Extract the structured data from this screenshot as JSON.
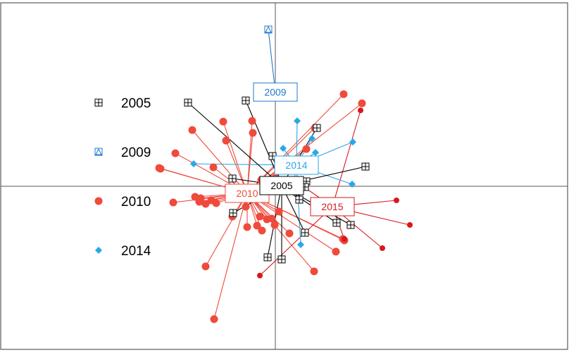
{
  "chart_data": {
    "type": "scatter",
    "title": "",
    "xlabel": "",
    "ylabel": "",
    "xlim": [
      -390,
      416
    ],
    "ylim": [
      -232,
      262
    ],
    "grid": false,
    "axes_through_origin": true,
    "legend_position": "left",
    "legend": [
      {
        "label": "2005",
        "marker": "square-plus",
        "color": "#000000"
      },
      {
        "label": "2009",
        "marker": "square-triangle",
        "color": "#1f78d0"
      },
      {
        "label": "2010",
        "marker": "circle",
        "color": "#ef4a3c"
      },
      {
        "label": "2014",
        "marker": "diamond",
        "color": "#29a8e8"
      }
    ],
    "series": [
      {
        "name": "2005",
        "color": "#000000",
        "marker": "square-plus",
        "centroid": {
          "label": "2005",
          "x": 9,
          "y": 1
        },
        "x": [
          -124,
          -42,
          59,
          -4,
          128,
          -61,
          -60,
          42,
          87,
          107,
          -11,
          9,
          34,
          29,
          44,
          42
        ],
        "y": [
          119,
          122,
          83,
          43,
          28,
          11,
          -38,
          -66,
          -52,
          -55,
          -101,
          -104,
          -19,
          3,
          7,
          -1
        ]
      },
      {
        "name": "2009",
        "color": "#1f78d0",
        "marker": "square-triangle",
        "centroid": {
          "label": "2009",
          "x": 0,
          "y": 134
        },
        "x": [
          -10
        ],
        "y": [
          223
        ]
      },
      {
        "name": "2010",
        "color": "#ef4a3c",
        "marker": "circle",
        "centroid": {
          "label": "2010",
          "x": -40,
          "y": -10
        },
        "x": [
          -163,
          -142,
          -88,
          -118,
          -70,
          -74,
          -32,
          -33,
          -165,
          -99,
          -106,
          -91,
          -108,
          -84,
          -61,
          -42,
          -40,
          -26,
          -12,
          -5,
          -22,
          -19,
          -99,
          -87,
          -145,
          -114,
          5,
          20,
          55,
          86,
          96,
          123,
          97,
          56,
          44,
          14,
          -20,
          -1,
          98,
          25,
          0
        ],
        "y": [
          25,
          47,
          27,
          80,
          65,
          92,
          76,
          93,
          26,
          -25,
          -17,
          -20,
          -22,
          -24,
          -43,
          -29,
          -58,
          -56,
          -47,
          -46,
          -43,
          -63,
          -114,
          -189,
          -23,
          -15,
          -36,
          -67,
          -121,
          -93,
          -75,
          118,
          131,
          83,
          53,
          27,
          9,
          -55,
          -77,
          -2,
          12
        ]
      },
      {
        "name": "2014",
        "color": "#29a8e8",
        "marker": "diamond",
        "centroid": {
          "label": "2014",
          "x": 30,
          "y": 30
        },
        "x": [
          -116,
          31,
          11,
          52,
          57,
          110,
          109,
          36,
          15,
          25
        ],
        "y": [
          32,
          93,
          54,
          68,
          48,
          63,
          3,
          -83,
          33,
          -3
        ]
      },
      {
        "name": "2015",
        "color": "#d7191c",
        "marker": "circle-small",
        "centroid": {
          "label": "2015",
          "x": 81,
          "y": -29
        },
        "x": [
          172,
          191,
          152,
          98,
          121,
          -22,
          32
        ],
        "y": [
          -20,
          -55,
          -88,
          -75,
          108,
          -127,
          5
        ]
      }
    ]
  }
}
